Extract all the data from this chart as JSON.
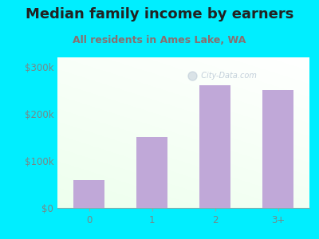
{
  "title": "Median family income by earners",
  "subtitle": "All residents in Ames Lake, WA",
  "categories": [
    "0",
    "1",
    "2",
    "3+"
  ],
  "values": [
    60000,
    150000,
    260000,
    250000
  ],
  "bar_color": "#c0a8d8",
  "outer_bg": "#00eeff",
  "title_color": "#222222",
  "subtitle_color": "#887070",
  "tick_color": "#778888",
  "ytick_labels": [
    "$0",
    "$100k",
    "$200k",
    "$300k"
  ],
  "ytick_values": [
    0,
    100000,
    200000,
    300000
  ],
  "ylim": [
    0,
    320000
  ],
  "title_fontsize": 13,
  "subtitle_fontsize": 9,
  "tick_fontsize": 8.5,
  "watermark": "  City-Data.com"
}
